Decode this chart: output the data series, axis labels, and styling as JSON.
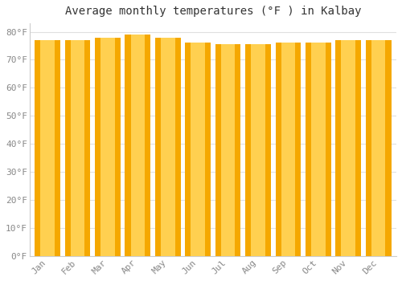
{
  "months": [
    "Jan",
    "Feb",
    "Mar",
    "Apr",
    "May",
    "Jun",
    "Jul",
    "Aug",
    "Sep",
    "Oct",
    "Nov",
    "Dec"
  ],
  "values": [
    77,
    77,
    78,
    79,
    78,
    76,
    75.5,
    75.5,
    76,
    76,
    77,
    77
  ],
  "bar_color_outer": "#F5A800",
  "bar_color_inner": "#FFD050",
  "background_color": "#FFFFFF",
  "grid_color": "#E0E0E0",
  "title": "Average monthly temperatures (°F ) in Kalbay",
  "title_fontsize": 10,
  "yticks": [
    0,
    10,
    20,
    30,
    40,
    50,
    60,
    70,
    80
  ],
  "ylim": [
    0,
    83
  ],
  "tick_color": "#888888",
  "tick_fontsize": 8,
  "spine_color": "#CCCCCC",
  "bar_width": 0.85
}
